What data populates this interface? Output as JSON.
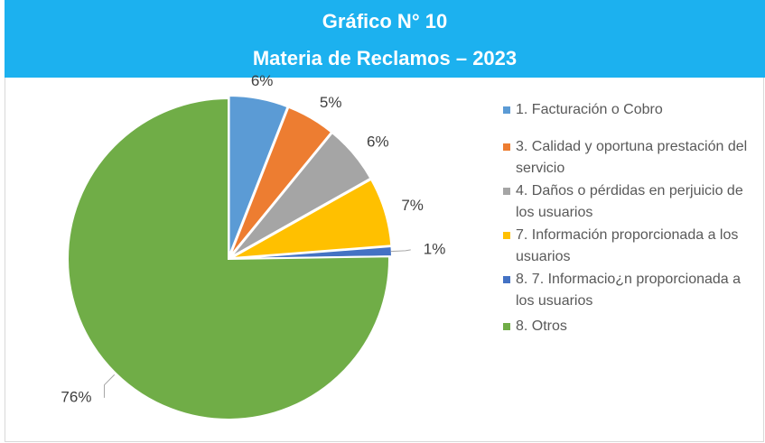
{
  "chart_data": {
    "type": "pie",
    "title": "Gráfico N° 10",
    "subtitle": "Materia de Reclamos – 2023",
    "categories": [
      "1. Facturación o Cobro",
      "3. Calidad y oportuna prestación del servicio",
      "4. Daños o pérdidas en perjuicio de los usuarios",
      "7. Información proporcionada a los usuarios",
      "8. 7. Informacio¿n proporcionada a los usuarios",
      "8. Otros"
    ],
    "values": [
      6,
      5,
      6,
      7,
      1,
      76
    ],
    "value_labels": [
      "6%",
      "5%",
      "6%",
      "7%",
      "1%",
      "76%"
    ],
    "colors": [
      "#5b9bd5",
      "#ed7d31",
      "#a5a5a5",
      "#ffc000",
      "#4472c4",
      "#70ad47"
    ],
    "legend": "right"
  }
}
